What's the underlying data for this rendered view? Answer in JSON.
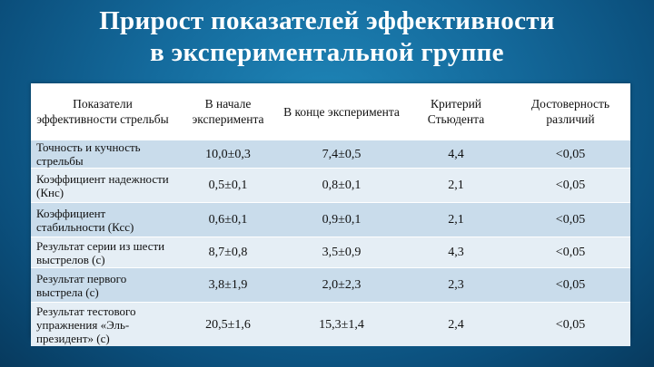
{
  "title": {
    "line1": "Прирост показателей эффективности",
    "line2": "в экспериментальной группе"
  },
  "table": {
    "headers": [
      "Показатели эффективности стрельбы",
      "В начале эксперимента",
      "В конце эксперимента",
      "Критерий Стьюдента",
      "Достоверность различий"
    ],
    "rows": [
      [
        "Точность и кучность стрельбы",
        "10,0±0,3",
        "7,4±0,5",
        "4,4",
        "<0,05"
      ],
      [
        "Коэффициент надежности (Кнс)",
        "0,5±0,1",
        "0,8±0,1",
        "2,1",
        "<0,05"
      ],
      [
        "Коэффициент стабильности (Ксс)",
        "0,6±0,1",
        "0,9±0,1",
        "2,1",
        "<0,05"
      ],
      [
        "Результат серии из шести выстрелов (с)",
        "8,7±0,8",
        "3,5±0,9",
        "4,3",
        "<0,05"
      ],
      [
        "Результат первого выстрела (с)",
        "3,8±1,9",
        "2,0±2,3",
        "2,3",
        "<0,05"
      ],
      [
        "Результат тестового упражнения «Эль-президент» (с)",
        "20,5±1,6",
        "15,3±1,4",
        "2,4",
        "<0,05"
      ]
    ]
  }
}
